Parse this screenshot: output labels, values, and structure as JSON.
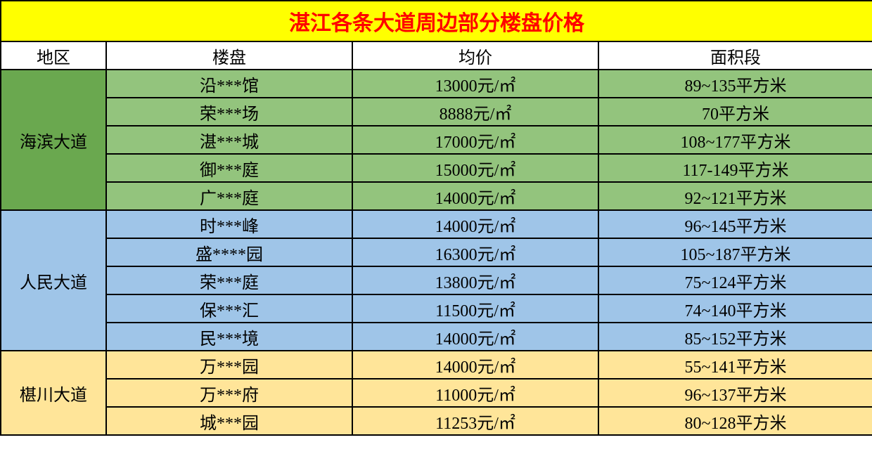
{
  "title": "湛江各条大道周边部分楼盘价格",
  "title_bg": "#ffff00",
  "title_color": "#ff0000",
  "header_bg": "#ffffff",
  "header_color": "#000000",
  "columns": [
    "地区",
    "楼盘",
    "均价",
    "面积段"
  ],
  "text_color": "#000000",
  "groups": [
    {
      "region": "海滨大道",
      "region_bg": "#6aa84f",
      "row_bg": "#93c47d",
      "rows": [
        {
          "name": "沿***馆",
          "price": "13000元/㎡",
          "area": "89~135平方米"
        },
        {
          "name": "荣***场",
          "price": "8888元/㎡",
          "area": "70平方米"
        },
        {
          "name": "湛***城",
          "price": "17000元/㎡",
          "area": "108~177平方米"
        },
        {
          "name": "御***庭",
          "price": "15000元/㎡",
          "area": "117-149平方米"
        },
        {
          "name": "广***庭",
          "price": "14000元/㎡",
          "area": "92~121平方米"
        }
      ]
    },
    {
      "region": "人民大道",
      "region_bg": "#9fc5e8",
      "row_bg": "#9fc5e8",
      "rows": [
        {
          "name": "时***峰",
          "price": "14000元/㎡",
          "area": "96~145平方米"
        },
        {
          "name": "盛****园",
          "price": "16300元/㎡",
          "area": "105~187平方米"
        },
        {
          "name": "荣***庭",
          "price": "13800元/㎡",
          "area": "75~124平方米"
        },
        {
          "name": "保***汇",
          "price": "11500元/㎡",
          "area": "74~140平方米"
        },
        {
          "name": "民***境",
          "price": "14000元/㎡",
          "area": "85~152平方米"
        }
      ]
    },
    {
      "region": "椹川大道",
      "region_bg": "#ffe599",
      "row_bg": "#ffe599",
      "rows": [
        {
          "name": "万***园",
          "price": "14000元/㎡",
          "area": "55~141平方米"
        },
        {
          "name": "万***府",
          "price": "11000元/㎡",
          "area": "96~137平方米"
        },
        {
          "name": "城***园",
          "price": "11253元/㎡",
          "area": "80~128平方米"
        }
      ]
    }
  ]
}
